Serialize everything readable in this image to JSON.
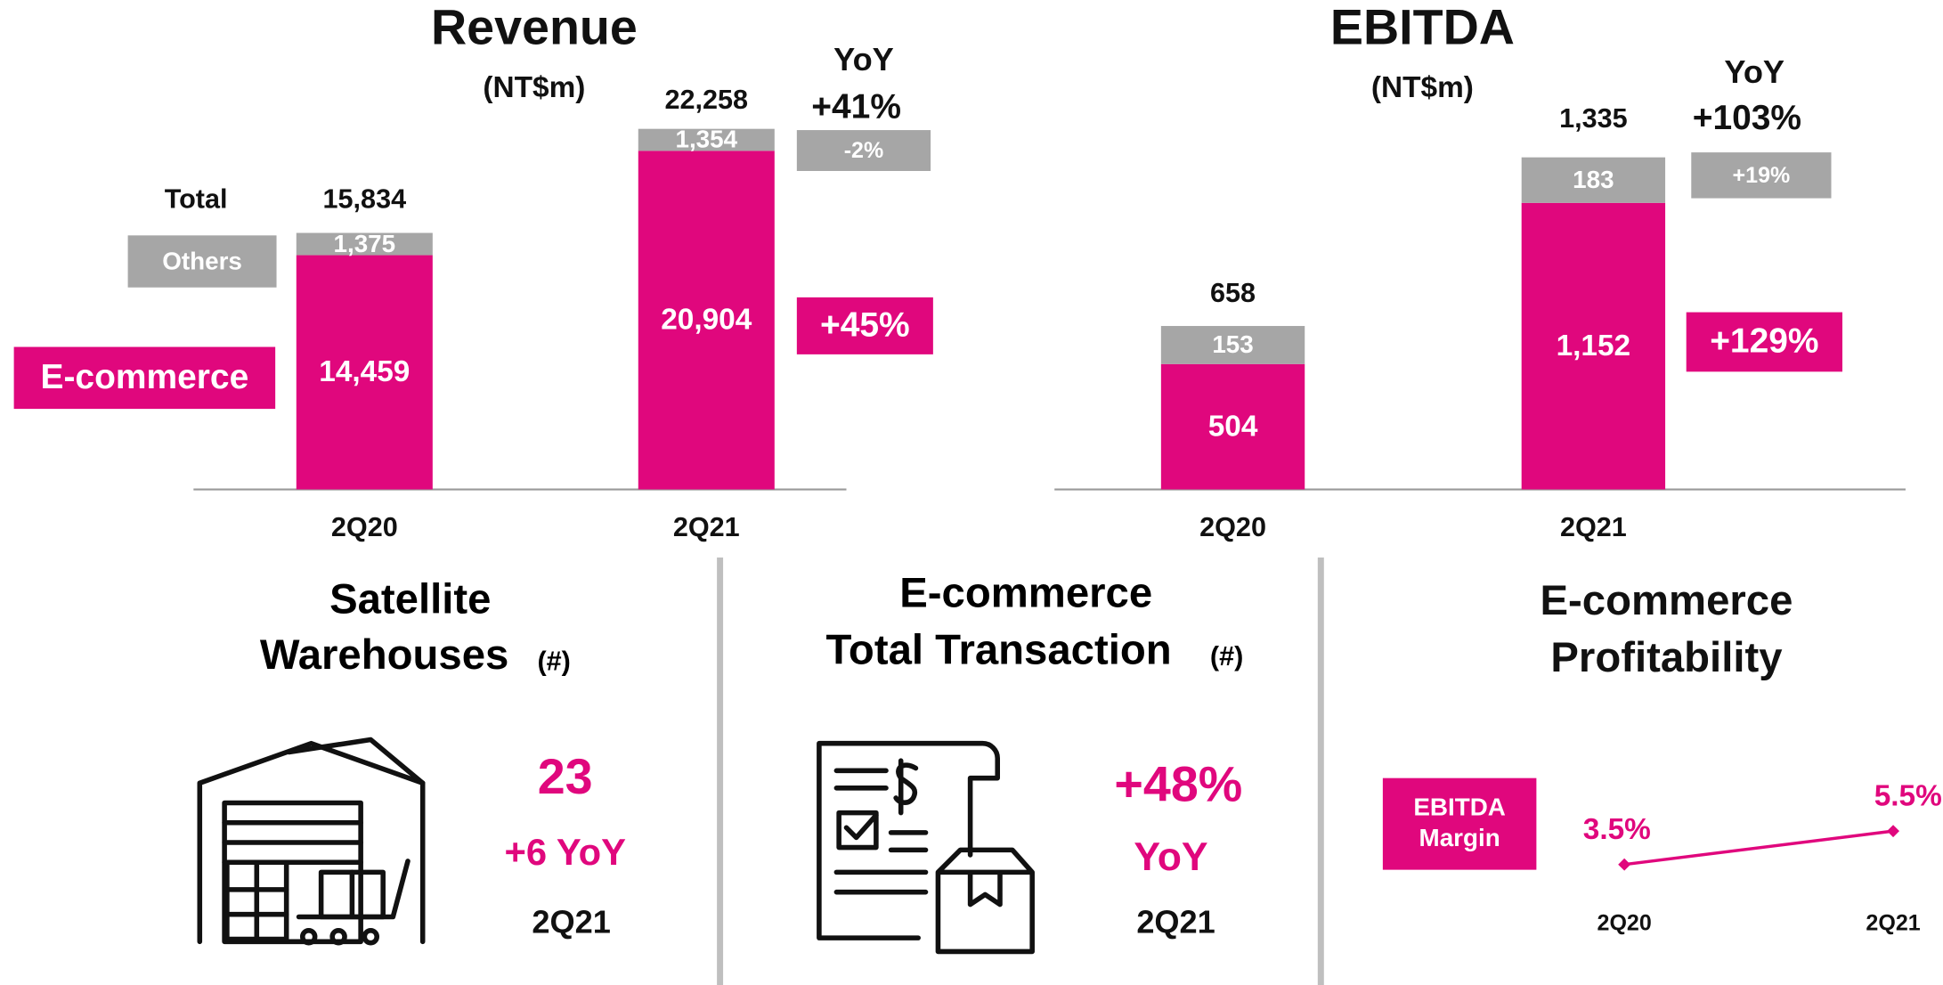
{
  "chart_data": [
    {
      "type": "bar",
      "stacked": true,
      "title": "Revenue",
      "subtitle": "(NT$m)",
      "categories": [
        "2Q20",
        "2Q21"
      ],
      "series": [
        {
          "name": "E-commerce",
          "color": "#e0077d",
          "values": [
            14459,
            20904
          ],
          "value_labels": [
            "14,459",
            "20,904"
          ],
          "yoy": "+45%"
        },
        {
          "name": "Others",
          "color": "#a6a6a6",
          "values": [
            1375,
            1354
          ],
          "value_labels": [
            "1,375",
            "1,354"
          ],
          "yoy": "-2%"
        }
      ],
      "total_label": "Total",
      "totals": [
        15834,
        22258
      ],
      "total_labels": [
        "15,834",
        "22,258"
      ],
      "yoy_label": "YoY",
      "yoy_total": "+41%",
      "legend": true
    },
    {
      "type": "bar",
      "stacked": true,
      "title": "EBITDA",
      "subtitle": "(NT$m)",
      "categories": [
        "2Q20",
        "2Q21"
      ],
      "series": [
        {
          "name": "E-commerce",
          "color": "#e0077d",
          "values": [
            504,
            1152
          ],
          "value_labels": [
            "504",
            "1,152"
          ],
          "yoy": "+129%"
        },
        {
          "name": "Others",
          "color": "#a6a6a6",
          "values": [
            153,
            183
          ],
          "value_labels": [
            "153",
            "183"
          ],
          "yoy": "+19%"
        }
      ],
      "totals": [
        658,
        1335
      ],
      "total_labels": [
        "658",
        "1,335"
      ],
      "yoy_label": "YoY",
      "yoy_total": "+103%",
      "legend": false
    },
    {
      "type": "line",
      "title_lines": [
        "E-commerce",
        "Profitability"
      ],
      "categories": [
        "2Q20",
        "2Q21"
      ],
      "series": [
        {
          "name": "EBITDA Margin",
          "color": "#e0077d",
          "values": [
            3.5,
            5.5
          ],
          "value_labels": [
            "3.5%",
            "5.5%"
          ]
        }
      ]
    }
  ],
  "panels": {
    "warehouses": {
      "title_lines": [
        "Satellite",
        "Warehouses"
      ],
      "unit": "(#)",
      "value": "23",
      "change": "+6 YoY",
      "period": "2Q21"
    },
    "transactions": {
      "title_lines": [
        "E-commerce",
        "Total Transaction"
      ],
      "unit": "(#)",
      "value": "+48%",
      "change": "YoY",
      "period": "2Q21"
    }
  }
}
